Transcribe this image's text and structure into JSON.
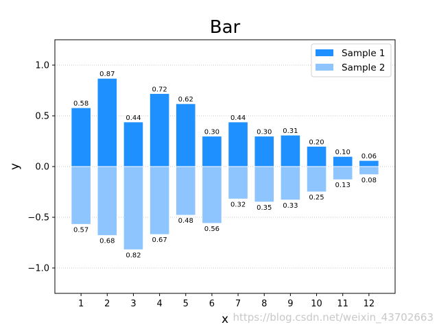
{
  "chart_data": {
    "type": "bar",
    "title": "Bar",
    "xlabel": "x",
    "ylabel": "y",
    "categories": [
      "1",
      "2",
      "3",
      "4",
      "5",
      "6",
      "7",
      "8",
      "9",
      "10",
      "11",
      "12"
    ],
    "series": [
      {
        "name": "Sample 1",
        "color": "#1e90ff",
        "values": [
          0.58,
          0.87,
          0.44,
          0.72,
          0.62,
          0.3,
          0.44,
          0.3,
          0.31,
          0.2,
          0.1,
          0.06
        ],
        "labels": [
          "0.58",
          "0.87",
          "0.44",
          "0.72",
          "0.62",
          "0.30",
          "0.44",
          "0.30",
          "0.31",
          "0.20",
          "0.10",
          "0.06"
        ]
      },
      {
        "name": "Sample 2",
        "color": "#8fc5ff",
        "values": [
          -0.57,
          -0.68,
          -0.82,
          -0.67,
          -0.48,
          -0.56,
          -0.32,
          -0.35,
          -0.33,
          -0.25,
          -0.13,
          -0.08
        ],
        "labels": [
          "0.57",
          "0.68",
          "0.82",
          "0.67",
          "0.48",
          "0.56",
          "0.32",
          "0.35",
          "0.33",
          "0.25",
          "0.13",
          "0.08"
        ]
      }
    ],
    "ylim": [
      -1.25,
      1.25
    ],
    "xlim": [
      0,
      13
    ],
    "yticks": [
      -1.0,
      -0.5,
      0.0,
      0.5,
      1.0
    ],
    "ytick_labels": [
      "−1.0",
      "−0.5",
      "0.0",
      "0.5",
      "1.0"
    ],
    "grid": "horizontal dotted",
    "legend_position": "top-right"
  },
  "watermark": "https://blog.csdn.net/weixin_43702663"
}
